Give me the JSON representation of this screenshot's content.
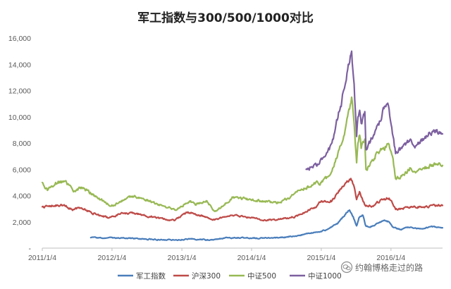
{
  "chart_data": {
    "type": "line",
    "title": "军工指数与300/500/1000对比",
    "xlabel": "",
    "ylabel": "",
    "ylim": [
      0,
      16000
    ],
    "yticks": [
      0,
      2000,
      4000,
      6000,
      8000,
      10000,
      12000,
      14000,
      16000
    ],
    "ytick_labels": [
      "-",
      "2,000",
      "4,000",
      "6,000",
      "8,000",
      "10,000",
      "12,000",
      "14,000",
      "16,000"
    ],
    "xlim": [
      "2011-01-04",
      "2016-09-30"
    ],
    "xticks": [
      "2011-01-04",
      "2012-01-04",
      "2013-01-04",
      "2014-01-04",
      "2015-01-04",
      "2016-01-04"
    ],
    "xtick_labels": [
      "2011/1/4",
      "2012/1/4",
      "2013/1/4",
      "2014/1/4",
      "2015/1/4",
      "2016/1/4"
    ],
    "grid": false,
    "legend": "bottom",
    "series": [
      {
        "name": "军工指数",
        "color": "#4a7ebb",
        "points": [
          [
            "2011-09-15",
            800
          ],
          [
            "2011-12-01",
            750
          ],
          [
            "2012-03-01",
            780
          ],
          [
            "2012-06-01",
            700
          ],
          [
            "2012-09-01",
            650
          ],
          [
            "2012-12-01",
            620
          ],
          [
            "2013-03-01",
            700
          ],
          [
            "2013-06-01",
            620
          ],
          [
            "2013-09-01",
            800
          ],
          [
            "2013-12-01",
            780
          ],
          [
            "2014-03-01",
            760
          ],
          [
            "2014-06-01",
            800
          ],
          [
            "2014-09-01",
            950
          ],
          [
            "2014-12-01",
            1200
          ],
          [
            "2015-02-01",
            1400
          ],
          [
            "2015-04-01",
            1900
          ],
          [
            "2015-05-15",
            2700
          ],
          [
            "2015-06-01",
            2900
          ],
          [
            "2015-06-20",
            2400
          ],
          [
            "2015-07-08",
            1700
          ],
          [
            "2015-07-20",
            2300
          ],
          [
            "2015-08-10",
            2500
          ],
          [
            "2015-08-25",
            1700
          ],
          [
            "2015-09-15",
            1600
          ],
          [
            "2015-10-15",
            1800
          ],
          [
            "2015-11-25",
            2100
          ],
          [
            "2015-12-25",
            2000
          ],
          [
            "2016-01-15",
            1600
          ],
          [
            "2016-02-28",
            1400
          ],
          [
            "2016-04-01",
            1600
          ],
          [
            "2016-05-15",
            1500
          ],
          [
            "2016-07-01",
            1500
          ],
          [
            "2016-08-01",
            1650
          ],
          [
            "2016-09-30",
            1550
          ]
        ]
      },
      {
        "name": "沪深300",
        "color": "#be4b48",
        "points": [
          [
            "2011-01-04",
            3150
          ],
          [
            "2011-04-15",
            3300
          ],
          [
            "2011-06-15",
            2950
          ],
          [
            "2011-07-15",
            3100
          ],
          [
            "2011-09-30",
            2650
          ],
          [
            "2011-12-15",
            2300
          ],
          [
            "2012-03-01",
            2650
          ],
          [
            "2012-05-01",
            2650
          ],
          [
            "2012-08-01",
            2350
          ],
          [
            "2012-11-25",
            2100
          ],
          [
            "2013-02-05",
            2750
          ],
          [
            "2013-06-25",
            2150
          ],
          [
            "2013-09-15",
            2500
          ],
          [
            "2013-12-01",
            2400
          ],
          [
            "2014-03-15",
            2150
          ],
          [
            "2014-06-01",
            2200
          ],
          [
            "2014-09-01",
            2450
          ],
          [
            "2014-12-01",
            3100
          ],
          [
            "2014-12-31",
            3500
          ],
          [
            "2015-03-01",
            3600
          ],
          [
            "2015-04-25",
            4700
          ],
          [
            "2015-06-08",
            5300
          ],
          [
            "2015-06-28",
            4500
          ],
          [
            "2015-07-08",
            3700
          ],
          [
            "2015-07-23",
            4300
          ],
          [
            "2015-08-25",
            3200
          ],
          [
            "2015-09-30",
            3200
          ],
          [
            "2015-11-20",
            3700
          ],
          [
            "2015-12-25",
            3800
          ],
          [
            "2016-01-28",
            2950
          ],
          [
            "2016-03-01",
            3000
          ],
          [
            "2016-05-01",
            3150
          ],
          [
            "2016-07-01",
            3150
          ],
          [
            "2016-09-30",
            3250
          ]
        ]
      },
      {
        "name": "中证500",
        "color": "#98b954",
        "points": [
          [
            "2011-01-04",
            5000
          ],
          [
            "2011-01-31",
            4400
          ],
          [
            "2011-03-15",
            5000
          ],
          [
            "2011-05-01",
            5100
          ],
          [
            "2011-06-20",
            4350
          ],
          [
            "2011-08-01",
            4600
          ],
          [
            "2011-10-15",
            3900
          ],
          [
            "2011-12-31",
            3200
          ],
          [
            "2012-03-01",
            3650
          ],
          [
            "2012-05-01",
            4000
          ],
          [
            "2012-07-15",
            3600
          ],
          [
            "2012-09-15",
            3300
          ],
          [
            "2012-12-01",
            2900
          ],
          [
            "2013-02-15",
            3600
          ],
          [
            "2013-03-15",
            3300
          ],
          [
            "2013-05-15",
            3600
          ],
          [
            "2013-06-25",
            2800
          ],
          [
            "2013-10-01",
            3900
          ],
          [
            "2013-12-31",
            3700
          ],
          [
            "2014-03-01",
            3600
          ],
          [
            "2014-05-15",
            3400
          ],
          [
            "2014-07-15",
            3800
          ],
          [
            "2014-09-15",
            4400
          ],
          [
            "2014-11-15",
            4800
          ],
          [
            "2015-01-04",
            5000
          ],
          [
            "2015-02-15",
            5500
          ],
          [
            "2015-03-15",
            6500
          ],
          [
            "2015-04-15",
            7800
          ],
          [
            "2015-05-15",
            9500
          ],
          [
            "2015-06-12",
            11500
          ],
          [
            "2015-06-25",
            9500
          ],
          [
            "2015-07-08",
            6500
          ],
          [
            "2015-07-15",
            8000
          ],
          [
            "2015-07-24",
            8600
          ],
          [
            "2015-08-01",
            7600
          ],
          [
            "2015-08-20",
            8300
          ],
          [
            "2015-08-26",
            6000
          ],
          [
            "2015-09-15",
            6300
          ],
          [
            "2015-10-15",
            7100
          ],
          [
            "2015-11-15",
            7500
          ],
          [
            "2015-12-25",
            7900
          ],
          [
            "2016-01-15",
            6800
          ],
          [
            "2016-01-28",
            5300
          ],
          [
            "2016-03-01",
            5500
          ],
          [
            "2016-04-15",
            6100
          ],
          [
            "2016-05-15",
            5800
          ],
          [
            "2016-07-01",
            6200
          ],
          [
            "2016-08-15",
            6400
          ],
          [
            "2016-09-30",
            6300
          ]
        ]
      },
      {
        "name": "中证1000",
        "color": "#7d60a0",
        "points": [
          [
            "2014-10-17",
            6000
          ],
          [
            "2014-11-15",
            6200
          ],
          [
            "2014-12-15",
            6400
          ],
          [
            "2015-01-15",
            6900
          ],
          [
            "2015-02-15",
            7500
          ],
          [
            "2015-03-15",
            8800
          ],
          [
            "2015-04-15",
            10800
          ],
          [
            "2015-05-15",
            12800
          ],
          [
            "2015-06-12",
            15000
          ],
          [
            "2015-06-25",
            12500
          ],
          [
            "2015-07-08",
            8500
          ],
          [
            "2015-07-15",
            10000
          ],
          [
            "2015-07-24",
            10500
          ],
          [
            "2015-08-01",
            9500
          ],
          [
            "2015-08-20",
            10400
          ],
          [
            "2015-08-26",
            7500
          ],
          [
            "2015-09-15",
            8000
          ],
          [
            "2015-10-15",
            9000
          ],
          [
            "2015-11-15",
            9800
          ],
          [
            "2015-12-01",
            10800
          ],
          [
            "2015-12-25",
            10600
          ],
          [
            "2016-01-15",
            8500
          ],
          [
            "2016-01-28",
            7200
          ],
          [
            "2016-03-01",
            7600
          ],
          [
            "2016-04-15",
            8300
          ],
          [
            "2016-05-15",
            7800
          ],
          [
            "2016-07-01",
            8500
          ],
          [
            "2016-08-15",
            9000
          ],
          [
            "2016-09-30",
            8700
          ]
        ]
      }
    ]
  },
  "watermark": {
    "text": "约翰博格走过的路",
    "icon": "wechat-icon"
  }
}
